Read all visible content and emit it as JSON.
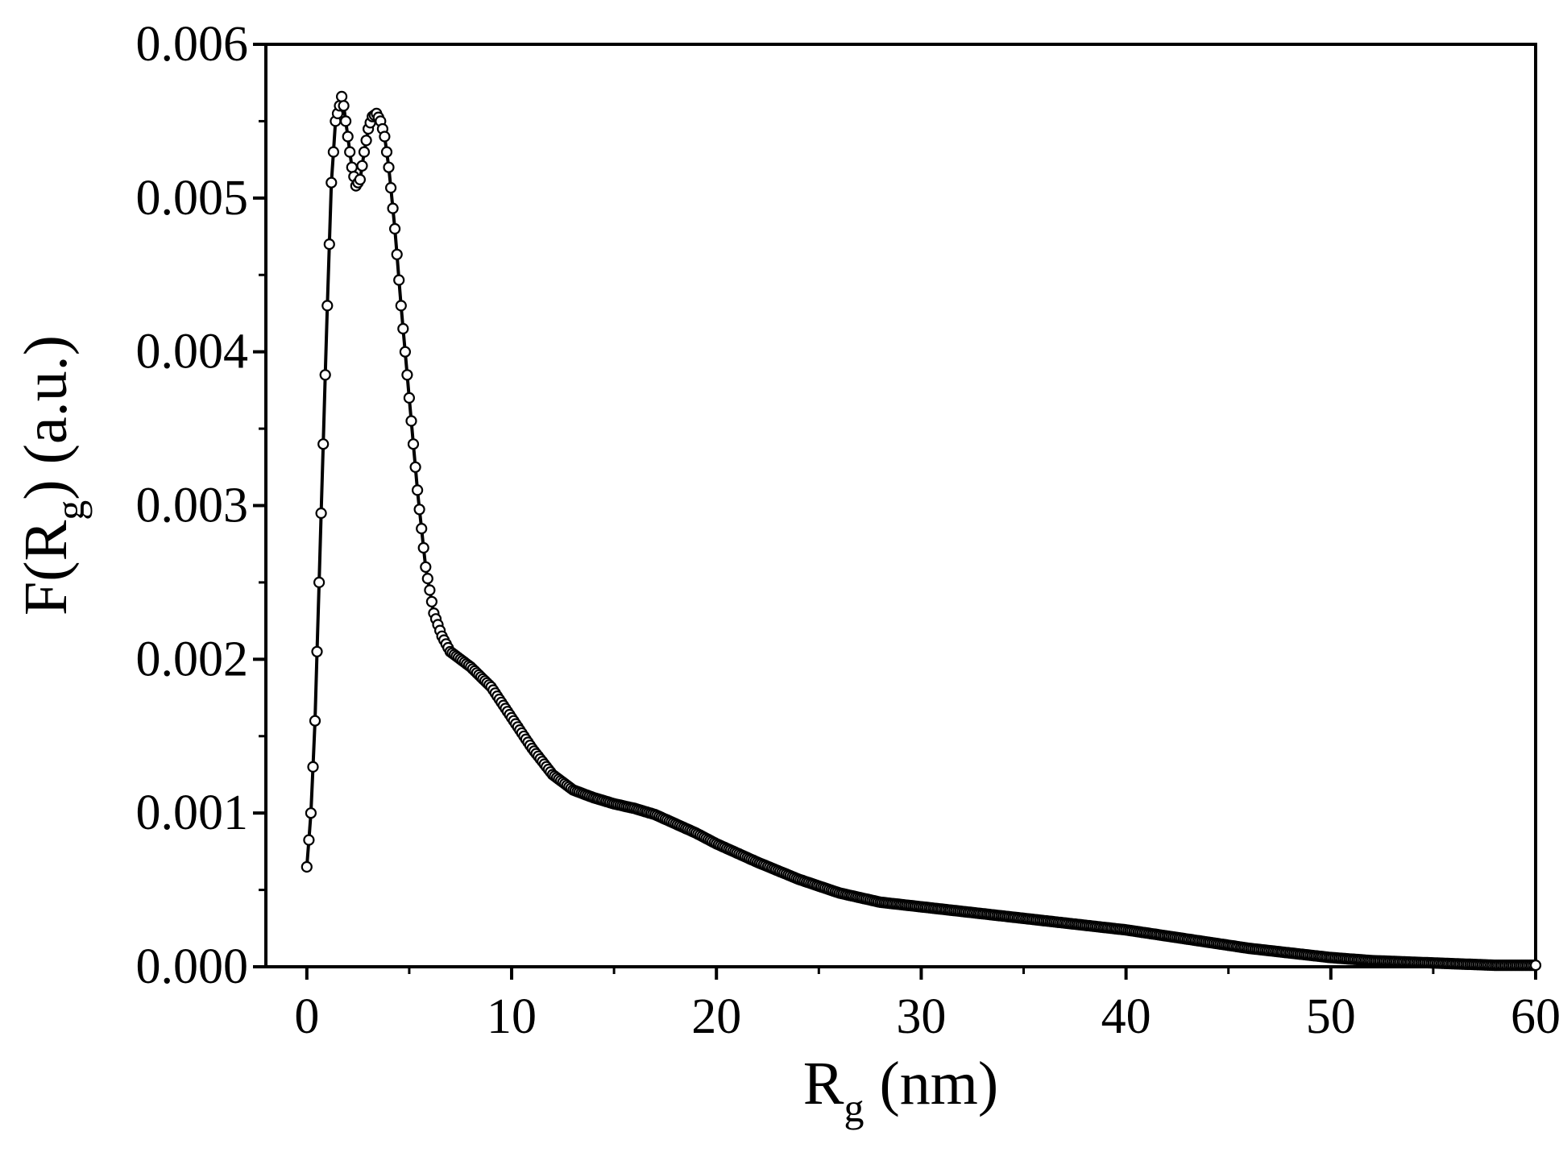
{
  "chart_data": {
    "type": "scatter",
    "title": "",
    "xlabel": {
      "main": "R",
      "sub": "g",
      "rest": " (nm)"
    },
    "ylabel": {
      "main": "F(R",
      "sub": "g",
      "rest": ") (a.u.)"
    },
    "xlim": [
      -2,
      60
    ],
    "ylim": [
      0,
      0.006
    ],
    "x_ticks": [
      0,
      10,
      20,
      30,
      40,
      50,
      60
    ],
    "x_tick_labels": [
      "0",
      "10",
      "20",
      "30",
      "40",
      "50",
      "60"
    ],
    "y_ticks": [
      0,
      0.001,
      0.002,
      0.003,
      0.004,
      0.005,
      0.006
    ],
    "y_tick_labels": [
      "0.000",
      "0.001",
      "0.002",
      "0.003",
      "0.004",
      "0.005",
      "0.006"
    ],
    "grid": false,
    "legend": "none",
    "marker": "open-circle",
    "line_color": "#000000",
    "series": [
      {
        "x": [
          0,
          0.2,
          0.4,
          0.6,
          0.8,
          1.0,
          1.2,
          1.4,
          1.6,
          1.7,
          1.8,
          2.0,
          2.2,
          2.4,
          2.6,
          2.8,
          3.0,
          3.2,
          3.4,
          3.6,
          3.8,
          4.0,
          4.3,
          4.6,
          5.0,
          5.4,
          5.8,
          6.2,
          6.6,
          7.0,
          8.0,
          9.0,
          10.0,
          11.0,
          12.0,
          13.0,
          14.0,
          15.0,
          16.0,
          17.0,
          18.0,
          19.0,
          20.0,
          22.0,
          24.0,
          26.0,
          28.0,
          30.0,
          32.0,
          34.0,
          36.0,
          38.0,
          40.0,
          42.0,
          44.0,
          46.0,
          48.0,
          50.0,
          52.0,
          54.0,
          56.0,
          58.0,
          60.0
        ],
        "y": [
          0.00065,
          0.001,
          0.0016,
          0.0025,
          0.0034,
          0.0043,
          0.0051,
          0.0055,
          0.0056,
          0.00566,
          0.0056,
          0.0054,
          0.0052,
          0.00508,
          0.00512,
          0.0053,
          0.00545,
          0.00553,
          0.00555,
          0.0055,
          0.0054,
          0.0052,
          0.0048,
          0.0043,
          0.0037,
          0.0031,
          0.0026,
          0.0023,
          0.00215,
          0.00205,
          0.00195,
          0.00182,
          0.00162,
          0.00142,
          0.00125,
          0.00115,
          0.0011,
          0.00106,
          0.00103,
          0.00099,
          0.00093,
          0.00087,
          0.0008,
          0.00068,
          0.00057,
          0.00048,
          0.00042,
          0.00039,
          0.00036,
          0.00033,
          0.0003,
          0.00027,
          0.00024,
          0.0002,
          0.00016,
          0.00012,
          9e-05,
          6e-05,
          4e-05,
          3e-05,
          2e-05,
          1e-05,
          1e-05
        ]
      }
    ]
  }
}
